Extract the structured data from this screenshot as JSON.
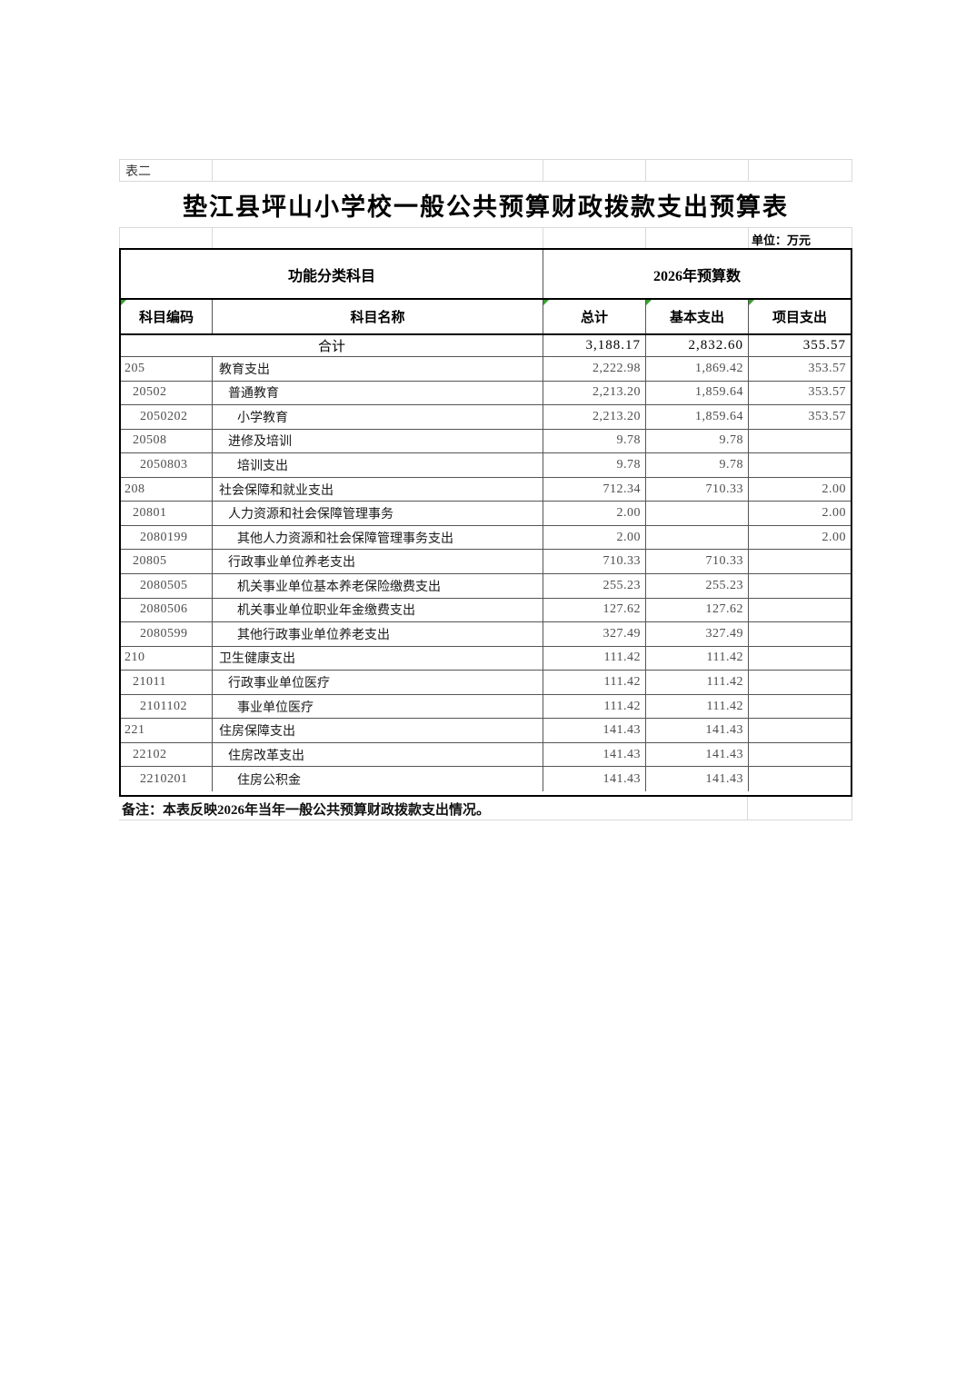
{
  "sheet_label": "表二",
  "title": "垫江县坪山小学校一般公共预算财政拨款支出预算表",
  "unit_label": "单位：万元",
  "header": {
    "group_function": "功能分类科目",
    "group_budget": "2026年预算数",
    "col_code": "科目编码",
    "col_name": "科目名称",
    "col_total": "总计",
    "col_basic": "基本支出",
    "col_project": "项目支出"
  },
  "total_row": {
    "name": "合计",
    "total": "3,188.17",
    "basic": "2,832.60",
    "project": "355.57"
  },
  "rows": [
    {
      "code": "205",
      "name": "教育支出",
      "level": 0,
      "total": "2,222.98",
      "basic": "1,869.42",
      "project": "353.57"
    },
    {
      "code": "20502",
      "name": "普通教育",
      "level": 1,
      "total": "2,213.20",
      "basic": "1,859.64",
      "project": "353.57"
    },
    {
      "code": "2050202",
      "name": "小学教育",
      "level": 2,
      "total": "2,213.20",
      "basic": "1,859.64",
      "project": "353.57"
    },
    {
      "code": "20508",
      "name": "进修及培训",
      "level": 1,
      "total": "9.78",
      "basic": "9.78",
      "project": ""
    },
    {
      "code": "2050803",
      "name": "培训支出",
      "level": 2,
      "total": "9.78",
      "basic": "9.78",
      "project": ""
    },
    {
      "code": "208",
      "name": "社会保障和就业支出",
      "level": 0,
      "total": "712.34",
      "basic": "710.33",
      "project": "2.00"
    },
    {
      "code": "20801",
      "name": "人力资源和社会保障管理事务",
      "level": 1,
      "total": "2.00",
      "basic": "",
      "project": "2.00"
    },
    {
      "code": "2080199",
      "name": "其他人力资源和社会保障管理事务支出",
      "level": 2,
      "total": "2.00",
      "basic": "",
      "project": "2.00"
    },
    {
      "code": "20805",
      "name": "行政事业单位养老支出",
      "level": 1,
      "total": "710.33",
      "basic": "710.33",
      "project": ""
    },
    {
      "code": "2080505",
      "name": "机关事业单位基本养老保险缴费支出",
      "level": 2,
      "total": "255.23",
      "basic": "255.23",
      "project": ""
    },
    {
      "code": "2080506",
      "name": "机关事业单位职业年金缴费支出",
      "level": 2,
      "total": "127.62",
      "basic": "127.62",
      "project": ""
    },
    {
      "code": "2080599",
      "name": "其他行政事业单位养老支出",
      "level": 2,
      "total": "327.49",
      "basic": "327.49",
      "project": ""
    },
    {
      "code": "210",
      "name": "卫生健康支出",
      "level": 0,
      "total": "111.42",
      "basic": "111.42",
      "project": ""
    },
    {
      "code": "21011",
      "name": "行政事业单位医疗",
      "level": 1,
      "total": "111.42",
      "basic": "111.42",
      "project": ""
    },
    {
      "code": "2101102",
      "name": "事业单位医疗",
      "level": 2,
      "total": "111.42",
      "basic": "111.42",
      "project": ""
    },
    {
      "code": "221",
      "name": "住房保障支出",
      "level": 0,
      "total": "141.43",
      "basic": "141.43",
      "project": ""
    },
    {
      "code": "22102",
      "name": "住房改革支出",
      "level": 1,
      "total": "141.43",
      "basic": "141.43",
      "project": ""
    },
    {
      "code": "2210201",
      "name": "住房公积金",
      "level": 2,
      "total": "141.43",
      "basic": "141.43",
      "project": ""
    }
  ],
  "note": "备注：本表反映2026年当年一般公共预算财政拨款支出情况。",
  "colors": {
    "border_heavy": "#000000",
    "border_thin": "#555555",
    "gridline": "#d9d9d9",
    "indicator_green": "#33a02c",
    "data_text": "#4d4d4d",
    "heading_text": "#000000"
  }
}
